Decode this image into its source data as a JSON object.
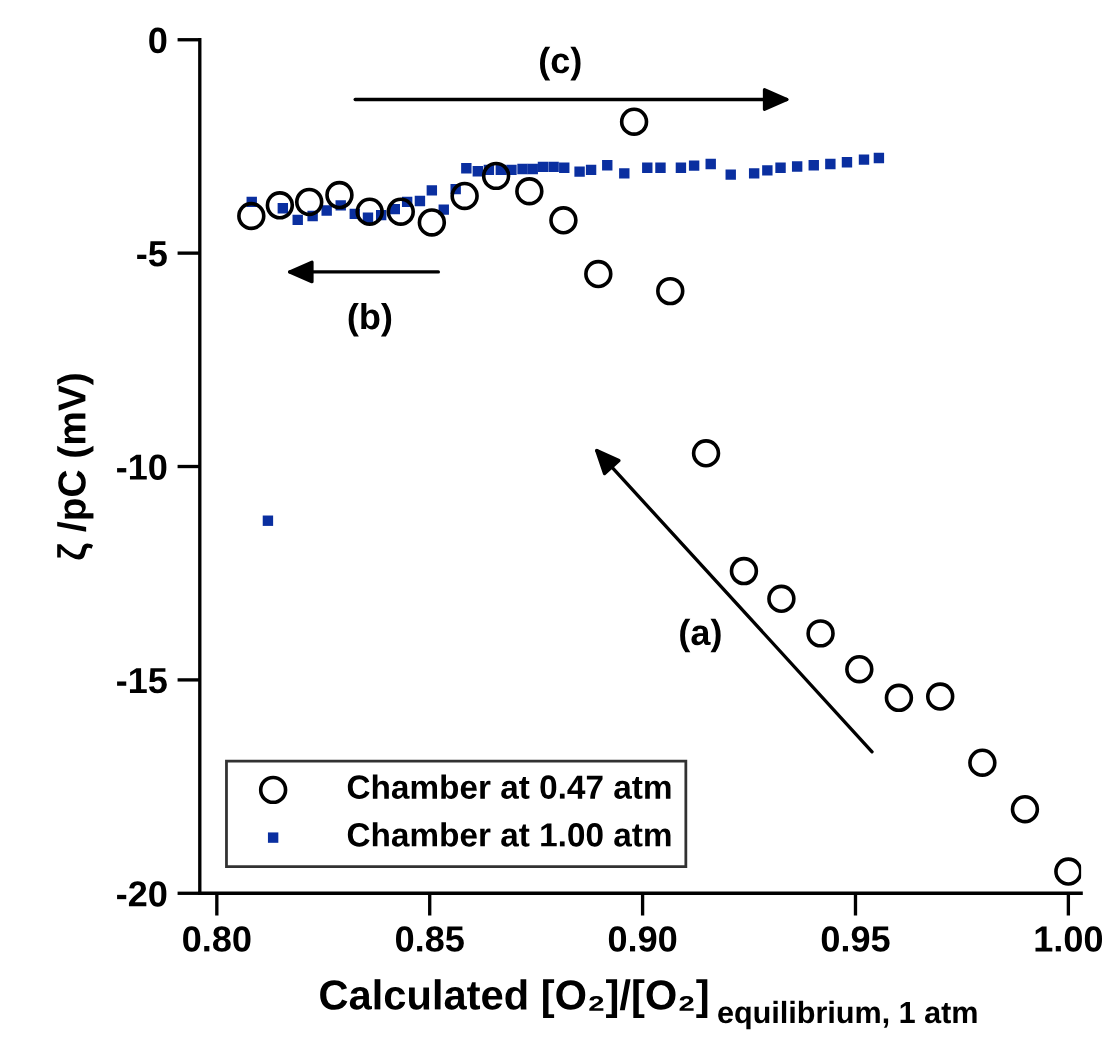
{
  "chart_data": {
    "type": "scatter",
    "xlabel": "Calculated [O₂]/[O₂]$_{equilibrium, 1 atm}$",
    "ylabel": "ζ /pC (mV)",
    "xlim": [
      0.796,
      1.003
    ],
    "xticks": [
      {
        "value": 0.8,
        "label": "0.80"
      },
      {
        "value": 0.85,
        "label": "0.85"
      },
      {
        "value": 0.9,
        "label": "0.90"
      },
      {
        "value": 0.95,
        "label": "0.95"
      },
      {
        "value": 1.0,
        "label": "1.00"
      }
    ],
    "ylim": [
      -20,
      0
    ],
    "yticks": [
      -20,
      -15,
      -10,
      -5,
      0
    ],
    "grid": false,
    "legend": "bottom left",
    "annotations": [
      "(a)",
      "(b)",
      "(c)"
    ],
    "series": [
      {
        "name": "Chamber at 0.47 atm",
        "color": "#000000",
        "marker": "circle",
        "x": [
          0.8081,
          0.8148,
          0.8217,
          0.8288,
          0.8359,
          0.8432,
          0.8505,
          0.8582,
          0.8656,
          0.8734,
          0.8814,
          0.898,
          0.8896,
          0.9065,
          0.9149,
          0.9238,
          0.9326,
          0.9418,
          0.9509,
          0.9602,
          0.9699,
          0.9798,
          0.9898,
          1.0
        ],
        "values": [
          -4.13,
          -3.88,
          -3.8,
          -3.64,
          -4.03,
          -4.03,
          -4.28,
          -3.66,
          -3.19,
          -3.55,
          -4.23,
          -1.92,
          -5.49,
          -5.89,
          -9.69,
          -12.45,
          -13.1,
          -13.91,
          -14.75,
          -15.42,
          -15.39,
          -16.94,
          -18.03,
          -19.49
        ]
      },
      {
        "name": "Chamber at 1.00 atm",
        "color": "#0a2fa0",
        "marker": "square",
        "x": [
          0.812,
          0.8082,
          0.8155,
          0.819,
          0.8225,
          0.8258,
          0.8291,
          0.8324,
          0.8355,
          0.8386,
          0.8418,
          0.8447,
          0.8477,
          0.8505,
          0.8533,
          0.8561,
          0.8586,
          0.8613,
          0.8639,
          0.8667,
          0.8692,
          0.8718,
          0.8742,
          0.8766,
          0.8791,
          0.8816,
          0.8852,
          0.8879,
          0.8917,
          0.8957,
          0.9011,
          0.9042,
          0.909,
          0.9121,
          0.916,
          0.9207,
          0.9262,
          0.9293,
          0.9324,
          0.9363,
          0.9402,
          0.9441,
          0.948,
          0.952,
          0.9555
        ],
        "values": [
          -11.27,
          -3.8,
          -3.95,
          -4.22,
          -4.13,
          -4.0,
          -3.88,
          -4.08,
          -4.17,
          -4.11,
          -3.97,
          -3.8,
          -3.78,
          -3.53,
          -3.98,
          -3.5,
          -3.01,
          -3.08,
          -3.05,
          -3.05,
          -3.05,
          -3.03,
          -3.03,
          -2.98,
          -2.98,
          -3.0,
          -3.09,
          -3.05,
          -2.94,
          -3.13,
          -3.0,
          -3.0,
          -3.0,
          -2.95,
          -2.91,
          -3.16,
          -3.13,
          -3.06,
          -3.0,
          -2.97,
          -2.94,
          -2.91,
          -2.87,
          -2.81,
          -2.77
        ]
      }
    ]
  }
}
